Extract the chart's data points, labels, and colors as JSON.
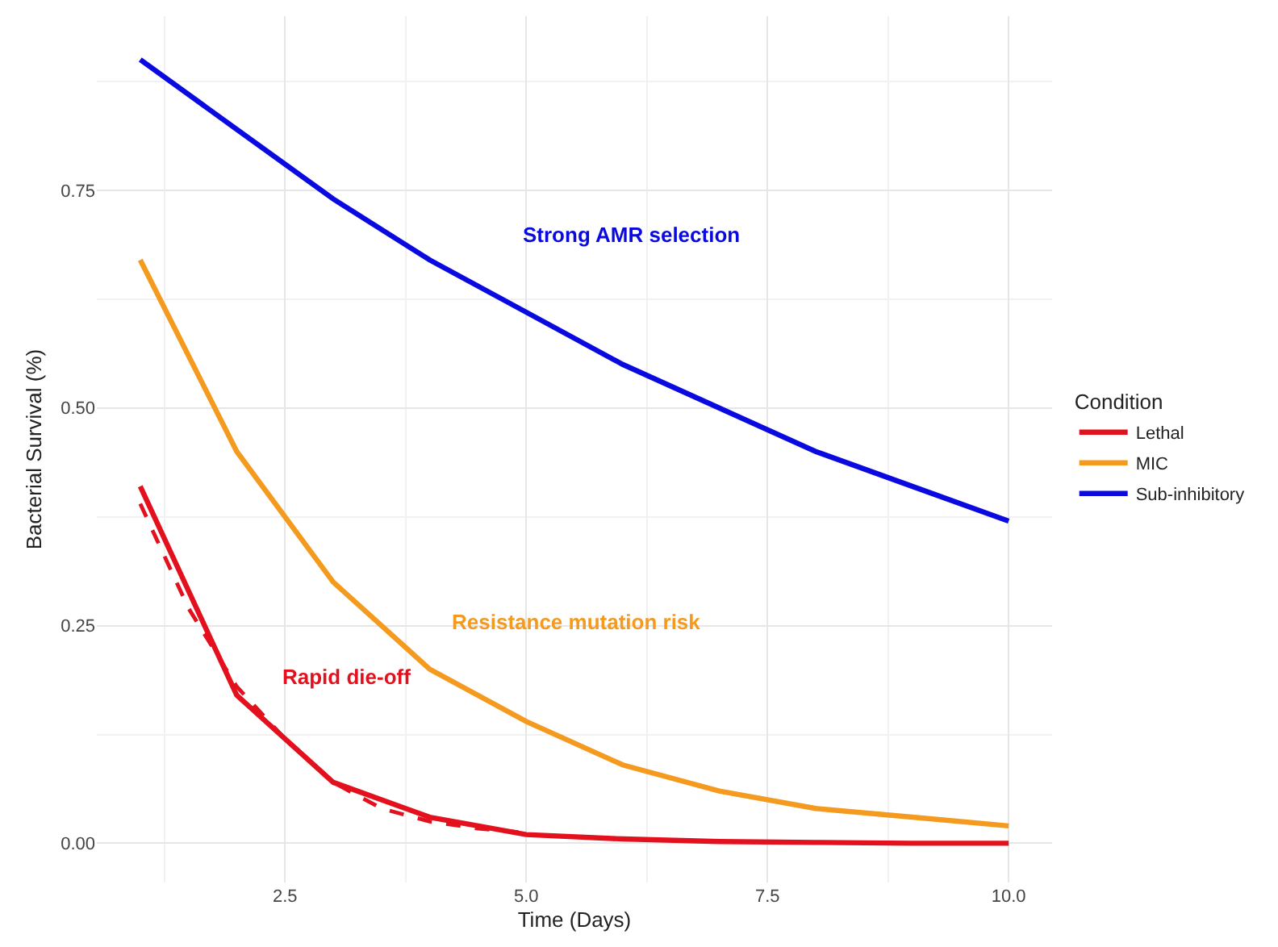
{
  "chart_data": {
    "type": "line",
    "xlabel": "Time (Days)",
    "ylabel": "Bacterial Survival (%)",
    "legend_title": "Condition",
    "legend": "right",
    "grid": true,
    "line_style": "solid",
    "marker": "none",
    "x": [
      1,
      2,
      3,
      4,
      5,
      6,
      7,
      8,
      9,
      10
    ],
    "xlim": [
      0.55,
      10.45
    ],
    "xticks": [
      {
        "value": 2.5,
        "label": "2.5"
      },
      {
        "value": 5,
        "label": "5.0"
      },
      {
        "value": 7.5,
        "label": "7.5"
      },
      {
        "value": 10,
        "label": "10.0"
      }
    ],
    "ylim": [
      -0.045,
      0.95
    ],
    "yticks": [
      {
        "value": 0,
        "label": "0.00"
      },
      {
        "value": 0.25,
        "label": "0.25"
      },
      {
        "value": 0.5,
        "label": "0.50"
      },
      {
        "value": 0.75,
        "label": "0.75"
      }
    ],
    "series": [
      {
        "name": "Lethal",
        "color": "#e3101e",
        "values": [
          0.41,
          0.17,
          0.07,
          0.03,
          0.01,
          0.005,
          0.002,
          0.001,
          0,
          0
        ]
      },
      {
        "name": "MIC",
        "color": "#f39a1f",
        "values": [
          0.67,
          0.45,
          0.3,
          0.2,
          0.14,
          0.09,
          0.06,
          0.04,
          0.03,
          0.02
        ]
      },
      {
        "name": "Sub-inhibitory",
        "color": "#0a0ae0",
        "values": [
          0.9,
          0.82,
          0.74,
          0.67,
          0.61,
          0.55,
          0.5,
          0.45,
          0.41,
          0.37
        ]
      },
      {
        "color": "#e3101e",
        "line_style": "dashed",
        "x": [
          1,
          1.5,
          2,
          2.5,
          3,
          3.5,
          4,
          4.5,
          5
        ],
        "values": [
          0.39,
          0.27,
          0.18,
          0.12,
          0.07,
          0.04,
          0.025,
          0.017,
          0.012
        ]
      }
    ],
    "annotations": [
      "Strong AMR selection",
      "Resistance mutation risk",
      "Rapid die-off"
    ]
  }
}
